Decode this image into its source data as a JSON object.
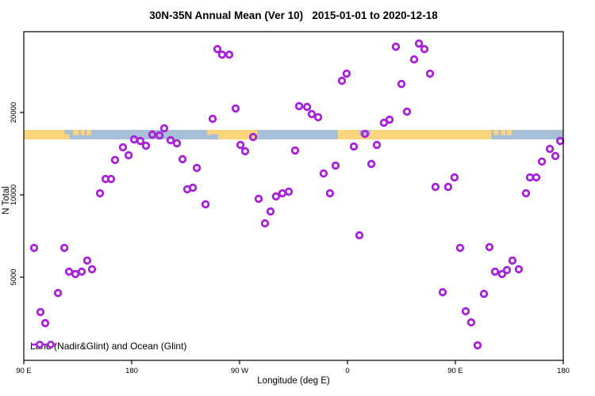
{
  "title": "30N-35N Annual Mean (Ver 10)   2015-01-01 to 2020-12-18",
  "chart_data": {
    "type": "scatter",
    "title": "30N-35N Annual Mean (Ver 10)   2015-01-01 to 2020-12-18",
    "xlabel": "Longitude (deg E)",
    "ylabel": "N Total",
    "x_axis": {
      "min": 90,
      "max": 540,
      "ticks": [
        {
          "value": 90,
          "label": "90 E"
        },
        {
          "value": 180,
          "label": "180"
        },
        {
          "value": 270,
          "label": "90 W"
        },
        {
          "value": 360,
          "label": "0"
        },
        {
          "value": 450,
          "label": "90 E"
        },
        {
          "value": 540,
          "label": "180"
        }
      ]
    },
    "y_axis": {
      "scale": "log",
      "min": 2484,
      "max": 39470,
      "ticks": [
        {
          "value": 5000,
          "label": "5000"
        },
        {
          "value": 10000,
          "label": "10000"
        },
        {
          "value": 20000,
          "label": "20000"
        }
      ]
    },
    "legend": {
      "label": "Land (Nadir&Glint) and Ocean (Glint)"
    },
    "colors": {
      "point": "#A820D8",
      "land": "#FAD57E",
      "ocean": "#A8BFD8",
      "axis": "#000000"
    },
    "map_band": {
      "value_top": 17270,
      "value_bottom": 15940,
      "segments": [
        {
          "from": 90,
          "to": 540,
          "color": "ocean",
          "part": "full"
        },
        {
          "from": 90,
          "to": 124,
          "color": "land",
          "part": "full"
        },
        {
          "from": 124,
          "to": 128,
          "color": "land",
          "part": "bottom"
        },
        {
          "from": 131,
          "to": 136,
          "color": "land",
          "part": "top"
        },
        {
          "from": 137.5,
          "to": 141,
          "color": "land",
          "part": "top"
        },
        {
          "from": 142.5,
          "to": 146,
          "color": "land",
          "part": "top"
        },
        {
          "from": 246,
          "to": 285,
          "color": "land",
          "part": "full"
        },
        {
          "from": 243,
          "to": 246,
          "color": "land",
          "part": "top"
        },
        {
          "from": 246,
          "to": 252,
          "color": "ocean",
          "part": "bottom"
        },
        {
          "from": 352,
          "to": 480,
          "color": "land",
          "part": "full"
        },
        {
          "from": 370,
          "to": 379,
          "color": "ocean",
          "part": "top"
        },
        {
          "from": 482,
          "to": 486,
          "color": "land",
          "part": "top"
        },
        {
          "from": 488,
          "to": 492,
          "color": "land",
          "part": "top"
        },
        {
          "from": 493,
          "to": 497,
          "color": "land",
          "part": "top"
        }
      ]
    },
    "points": [
      [
        251.5,
        34080
      ],
      [
        255.4,
        32530
      ],
      [
        261.4,
        32530
      ],
      [
        359.3,
        27720
      ],
      [
        355.4,
        26110
      ],
      [
        266.7,
        20680
      ],
      [
        247.5,
        18960
      ],
      [
        319.6,
        21100
      ],
      [
        326.3,
        20960
      ],
      [
        330.2,
        19740
      ],
      [
        335.5,
        19220
      ],
      [
        400.4,
        34780
      ],
      [
        419.6,
        35720
      ],
      [
        424.2,
        34090
      ],
      [
        415.6,
        31260
      ],
      [
        428.8,
        27720
      ],
      [
        405.0,
        25420
      ],
      [
        409.6,
        20140
      ],
      [
        395.1,
        18830
      ],
      [
        390.4,
        18340
      ],
      [
        207.1,
        17510
      ],
      [
        197.2,
        16600
      ],
      [
        203.2,
        16490
      ],
      [
        212.4,
        15840
      ],
      [
        217.7,
        15430
      ],
      [
        182.0,
        15950
      ],
      [
        187.3,
        15740
      ],
      [
        191.9,
        15120
      ],
      [
        172.7,
        14920
      ],
      [
        177.4,
        13950
      ],
      [
        166.1,
        13410
      ],
      [
        222.4,
        13500
      ],
      [
        234.3,
        12540
      ],
      [
        281.3,
        16270
      ],
      [
        270.7,
        15220
      ],
      [
        274.6,
        14430
      ],
      [
        316.3,
        14520
      ],
      [
        365.3,
        15020
      ],
      [
        374.6,
        16710
      ],
      [
        384.5,
        15220
      ],
      [
        350.1,
        12790
      ],
      [
        379.9,
        12970
      ],
      [
        340.1,
        11970
      ],
      [
        537.4,
        15740
      ],
      [
        528.8,
        14720
      ],
      [
        533.4,
        13860
      ],
      [
        522.2,
        13230
      ],
      [
        512.2,
        11580
      ],
      [
        517.5,
        11580
      ],
      [
        508.9,
        10130
      ],
      [
        158.2,
        11430
      ],
      [
        162.8,
        11430
      ],
      [
        153.5,
        10130
      ],
      [
        226.3,
        10480
      ],
      [
        231.0,
        10620
      ],
      [
        241.6,
        9233
      ],
      [
        285.9,
        9672
      ],
      [
        300.4,
        9868
      ],
      [
        305.7,
        10130
      ],
      [
        311.0,
        10270
      ],
      [
        295.8,
        8694
      ],
      [
        291.2,
        7866
      ],
      [
        345.4,
        10130
      ],
      [
        369.9,
        7117
      ],
      [
        433.4,
        10690
      ],
      [
        444.0,
        10690
      ],
      [
        449.3,
        11580
      ],
      [
        453.9,
        6399
      ],
      [
        478.4,
        6442
      ],
      [
        98.6,
        6399
      ],
      [
        123.8,
        6399
      ],
      [
        142.9,
        5751
      ],
      [
        127.7,
        5240
      ],
      [
        133.0,
        5136
      ],
      [
        138.3,
        5240
      ],
      [
        146.9,
        5345
      ],
      [
        118.5,
        4377
      ],
      [
        103.9,
        3730
      ],
      [
        107.9,
        3397
      ],
      [
        439.4,
        4406
      ],
      [
        473.8,
        4348
      ],
      [
        483.1,
        5240
      ],
      [
        489.0,
        5136
      ],
      [
        493.0,
        5309
      ],
      [
        497.6,
        5751
      ],
      [
        502.9,
        5345
      ],
      [
        458.6,
        3755
      ],
      [
        463.2,
        3420
      ],
      [
        468.5,
        2818
      ]
    ]
  }
}
